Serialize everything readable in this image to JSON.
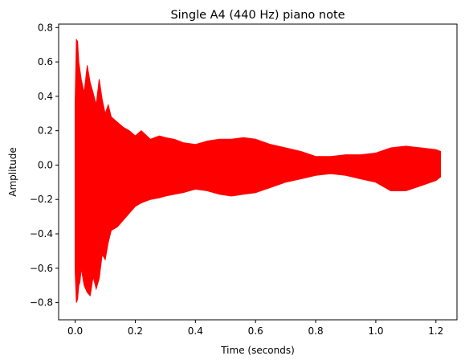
{
  "chart_data": {
    "type": "line",
    "title": "Single A4 (440 Hz) piano note",
    "xlabel": "Time (seconds)",
    "ylabel": "Amplitude",
    "xlim": [
      -0.055,
      1.27
    ],
    "ylim": [
      -0.9,
      0.82
    ],
    "xticks": [
      0.0,
      0.2,
      0.4,
      0.6,
      0.8,
      1.0,
      1.2
    ],
    "xtick_labels": [
      "0.0",
      "0.2",
      "0.4",
      "0.6",
      "0.8",
      "1.0",
      "1.2"
    ],
    "yticks": [
      -0.8,
      -0.6,
      -0.4,
      -0.2,
      0.0,
      0.2,
      0.4,
      0.6,
      0.8
    ],
    "ytick_labels": [
      "−0.8",
      "−0.6",
      "−0.4",
      "−0.2",
      "0.0",
      "0.2",
      "0.4",
      "0.6",
      "0.8"
    ],
    "grid": false,
    "line_color": "#ff0000",
    "series": [
      {
        "x": [
          0.0,
          0.004,
          0.008,
          0.012,
          0.016,
          0.02,
          0.03,
          0.04,
          0.05,
          0.06,
          0.07,
          0.08,
          0.09,
          0.1,
          0.11,
          0.12,
          0.14,
          0.16,
          0.18,
          0.2,
          0.22,
          0.25,
          0.28,
          0.3,
          0.33,
          0.36,
          0.4,
          0.44,
          0.48,
          0.52,
          0.56,
          0.6,
          0.65,
          0.7,
          0.75,
          0.8,
          0.85,
          0.9,
          0.95,
          1.0,
          1.05,
          1.1,
          1.15,
          1.2,
          1.215
        ],
        "upper": [
          0.38,
          0.73,
          0.72,
          0.6,
          0.55,
          0.5,
          0.42,
          0.58,
          0.48,
          0.42,
          0.35,
          0.5,
          0.38,
          0.3,
          0.35,
          0.28,
          0.25,
          0.22,
          0.2,
          0.17,
          0.2,
          0.15,
          0.17,
          0.16,
          0.15,
          0.13,
          0.12,
          0.14,
          0.15,
          0.15,
          0.16,
          0.15,
          0.12,
          0.1,
          0.08,
          0.05,
          0.05,
          0.06,
          0.06,
          0.07,
          0.1,
          0.11,
          0.1,
          0.09,
          0.08
        ],
        "lower": [
          -0.62,
          -0.8,
          -0.78,
          -0.7,
          -0.68,
          -0.6,
          -0.7,
          -0.74,
          -0.76,
          -0.65,
          -0.72,
          -0.66,
          -0.52,
          -0.55,
          -0.45,
          -0.38,
          -0.36,
          -0.32,
          -0.28,
          -0.24,
          -0.22,
          -0.2,
          -0.19,
          -0.18,
          -0.17,
          -0.16,
          -0.14,
          -0.15,
          -0.17,
          -0.18,
          -0.17,
          -0.16,
          -0.13,
          -0.1,
          -0.08,
          -0.06,
          -0.05,
          -0.06,
          -0.08,
          -0.1,
          -0.15,
          -0.15,
          -0.12,
          -0.09,
          -0.07
        ]
      }
    ]
  }
}
